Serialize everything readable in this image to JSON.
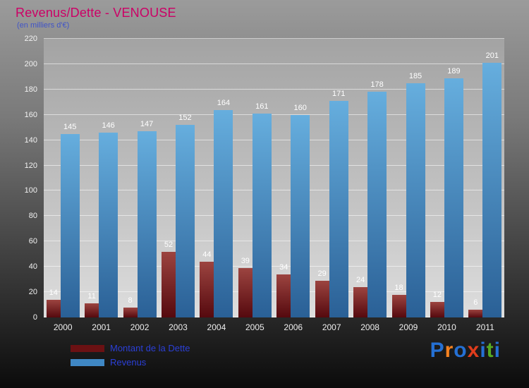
{
  "chart_data": {
    "type": "bar",
    "title": "Revenus/Dette - VENOUSE",
    "subtitle": "(en milliers d'€)",
    "xlabel": "",
    "ylabel": "",
    "categories": [
      "2000",
      "2001",
      "2002",
      "2003",
      "2004",
      "2005",
      "2006",
      "2007",
      "2008",
      "2009",
      "2010",
      "2011"
    ],
    "series": [
      {
        "name": "Montant de la Dette",
        "color": "#6b1113",
        "gradient": [
          "#9c4440",
          "#55090e"
        ],
        "values": [
          14,
          11,
          8,
          52,
          44,
          39,
          34,
          29,
          24,
          18,
          12,
          6
        ]
      },
      {
        "name": "Revenus",
        "color": "#3f87c4",
        "gradient": [
          "#66aede",
          "#2a6096"
        ],
        "values": [
          145,
          146,
          147,
          152,
          164,
          161,
          160,
          171,
          178,
          185,
          189,
          201
        ]
      }
    ],
    "ylim": [
      0,
      220
    ],
    "ytick_step": 20,
    "grid": true,
    "legend_position": "bottom-left"
  },
  "colors": {
    "title": "#cc0066",
    "subtitle": "#4054c8",
    "legend_text": "#2b3fd6",
    "axis_text": "#f2f2f2",
    "bar_value_text": "#ffffff"
  },
  "logo": {
    "text": "Proxiti",
    "letters": [
      {
        "ch": "P",
        "color": "#2570d4"
      },
      {
        "ch": "r",
        "color": "#f58220"
      },
      {
        "ch": "o",
        "color": "#2570d4"
      },
      {
        "ch": "x",
        "color": "#e03c1c"
      },
      {
        "ch": "i",
        "color": "#2570d4"
      },
      {
        "ch": "t",
        "color": "#55aa22"
      },
      {
        "ch": "i",
        "color": "#2570d4"
      }
    ]
  }
}
